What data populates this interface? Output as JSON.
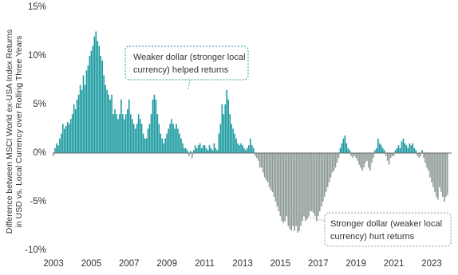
{
  "chart_data": {
    "type": "bar",
    "y_label_lines": [
      "Difference between MSCI World ex-USA Index Returns",
      "in USD vs. Local Currency  over Rolling Three Years"
    ],
    "annotations": [
      {
        "lines": [
          "Weaker dollar (stronger local",
          "currency) helped returns"
        ]
      },
      {
        "lines": [
          "Stronger dollar (weaker local",
          "currency) hurt returns"
        ]
      }
    ],
    "color": "#1b9aa0",
    "negative_color": "#8f9c97",
    "ylim": [
      -10,
      15
    ],
    "yticks": [
      {
        "value": -10,
        "label": "-10%"
      },
      {
        "value": -5,
        "label": "-5%"
      },
      {
        "value": 0,
        "label": "0%"
      },
      {
        "value": 5,
        "label": "5%"
      },
      {
        "value": 10,
        "label": "10%"
      },
      {
        "value": 15,
        "label": "15%"
      }
    ],
    "categories": [
      "2003",
      null,
      null,
      null,
      null,
      null,
      null,
      null,
      null,
      null,
      null,
      null,
      null,
      null,
      null,
      null,
      null,
      null,
      null,
      null,
      null,
      null,
      null,
      null,
      "2005",
      null,
      null,
      null,
      null,
      null,
      null,
      null,
      null,
      null,
      null,
      null,
      null,
      null,
      null,
      null,
      null,
      null,
      null,
      null,
      null,
      null,
      null,
      null,
      "2007",
      null,
      null,
      null,
      null,
      null,
      null,
      null,
      null,
      null,
      null,
      null,
      null,
      null,
      null,
      null,
      null,
      null,
      null,
      null,
      null,
      null,
      null,
      null,
      "2009",
      null,
      null,
      null,
      null,
      null,
      null,
      null,
      null,
      null,
      null,
      null,
      null,
      null,
      null,
      null,
      null,
      null,
      null,
      null,
      null,
      null,
      null,
      null,
      "2011",
      null,
      null,
      null,
      null,
      null,
      null,
      null,
      null,
      null,
      null,
      null,
      null,
      null,
      null,
      null,
      null,
      null,
      null,
      null,
      null,
      null,
      null,
      null,
      "2013",
      null,
      null,
      null,
      null,
      null,
      null,
      null,
      null,
      null,
      null,
      null,
      null,
      null,
      null,
      null,
      null,
      null,
      null,
      null,
      null,
      null,
      null,
      null,
      "2015",
      null,
      null,
      null,
      null,
      null,
      null,
      null,
      null,
      null,
      null,
      null,
      null,
      null,
      null,
      null,
      null,
      null,
      null,
      null,
      null,
      null,
      null,
      null,
      "2017",
      null,
      null,
      null,
      null,
      null,
      null,
      null,
      null,
      null,
      null,
      null,
      null,
      null,
      null,
      null,
      null,
      null,
      null,
      null,
      null,
      null,
      null,
      null,
      "2019",
      null,
      null,
      null,
      null,
      null,
      null,
      null,
      null,
      null,
      null,
      null,
      null,
      null,
      null,
      null,
      null,
      null,
      null,
      null,
      null,
      null,
      null,
      null,
      "2021",
      null,
      null,
      null,
      null,
      null,
      null,
      null,
      null,
      null,
      null,
      null,
      null,
      null,
      null,
      null,
      null,
      null,
      null,
      null,
      null,
      null,
      null,
      null,
      "2023",
      null,
      null,
      null,
      null,
      null,
      null,
      null,
      null,
      null,
      null
    ],
    "values": [
      -0.3,
      0.5,
      1,
      0.8,
      1.5,
      2,
      3,
      2.5,
      2.8,
      3.2,
      3,
      3.5,
      4,
      5,
      4.5,
      5.5,
      6,
      7,
      6.5,
      8,
      7,
      8.5,
      9,
      10,
      10.5,
      11,
      12,
      12.5,
      11.5,
      11,
      10,
      9.5,
      8,
      7,
      6.5,
      6,
      5.5,
      6,
      4,
      4.5,
      4,
      3.5,
      4,
      5.5,
      4,
      3.5,
      4,
      4.5,
      5.5,
      4,
      3.5,
      3,
      2.5,
      3,
      4,
      3.5,
      3,
      2,
      1.5,
      1.5,
      2.5,
      3,
      4,
      5.5,
      6,
      5.5,
      4,
      3,
      2,
      1.5,
      1,
      1.5,
      2,
      2.5,
      3,
      3.5,
      3,
      2.5,
      3,
      2.5,
      2,
      1.5,
      1,
      0.5,
      0.5,
      0.3,
      -0.3,
      0.2,
      -0.5,
      0.3,
      0.8,
      0.5,
      0.8,
      1,
      0.5,
      0.8,
      0.8,
      0.5,
      0.3,
      0.8,
      0.5,
      0.3,
      1,
      0.5,
      0.3,
      2,
      3,
      5,
      4,
      5,
      6.5,
      5.5,
      4,
      3,
      2.5,
      2,
      1.5,
      1,
      0.8,
      1,
      0.8,
      0.5,
      0.3,
      0.5,
      0.8,
      1.5,
      0.8,
      0.5,
      -0.3,
      -0.5,
      -0.8,
      -1.5,
      -1.5,
      -2,
      -2.5,
      -2.8,
      -3,
      -3.5,
      -3.8,
      -4,
      -4.5,
      -5,
      -5.5,
      -6,
      -6.5,
      -7,
      -7.2,
      -7,
      -6.5,
      -7.5,
      -7.8,
      -8,
      -7.5,
      -8,
      -7.5,
      -8.2,
      -8,
      -7.5,
      -7,
      -6.5,
      -7,
      -6.8,
      -6.5,
      -6,
      -6,
      -6.2,
      -6.5,
      -7,
      -6.5,
      -6,
      -5.5,
      -5,
      -4.5,
      -4,
      -3.5,
      -3,
      -2.5,
      -2,
      -1.8,
      -1.5,
      -1,
      -0.5,
      0.5,
      1,
      1.5,
      1.8,
      1,
      0.5,
      0.3,
      -0.3,
      -0.5,
      -0.3,
      -0.5,
      -0.8,
      -1.2,
      -1.5,
      -1.8,
      -1.5,
      -1,
      -0.8,
      -1.5,
      -1.8,
      -1,
      -0.5,
      0.3,
      0.5,
      1.5,
      1,
      0.8,
      0.5,
      0.3,
      -0.3,
      -0.8,
      -1.2,
      -0.5,
      -0.3,
      -0.3,
      0.3,
      0.5,
      0.8,
      0.5,
      1.2,
      1.5,
      1,
      0.8,
      0.5,
      1,
      0.8,
      1,
      0.5,
      0.3,
      -0.3,
      -0.5,
      -0.3,
      0.3,
      -0.5,
      -1,
      -1.5,
      -1.8,
      -2.5,
      -3,
      -3.5,
      -4,
      -4.5,
      -4.8,
      -3.5,
      -4,
      -4.5,
      -5,
      -4.5,
      -4.3
    ]
  }
}
